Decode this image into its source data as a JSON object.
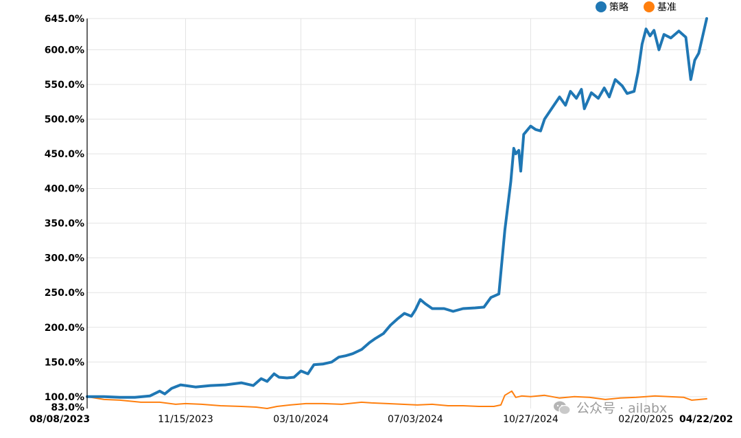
{
  "chart_data": {
    "type": "line",
    "legend_position": "top-right",
    "grid": true,
    "ylim": [
      83.0,
      645.0
    ],
    "y_ticks": [
      "83.0%",
      "100.0%",
      "150.0%",
      "200.0%",
      "250.0%",
      "300.0%",
      "350.0%",
      "400.0%",
      "450.0%",
      "500.0%",
      "550.0%",
      "600.0%",
      "645.0%"
    ],
    "x_ticks": [
      "08/08/2023",
      "11/15/2023",
      "03/10/2024",
      "07/03/2024",
      "10/27/2024",
      "02/20/2025",
      "04/22/202"
    ],
    "x_range": [
      "2023-08-08",
      "2025-04-22"
    ],
    "series": [
      {
        "name": "策略",
        "color": "#1f77b4",
        "points": [
          [
            "2023-08-08",
            100
          ],
          [
            "2023-08-25",
            100
          ],
          [
            "2023-09-10",
            99
          ],
          [
            "2023-09-25",
            99
          ],
          [
            "2023-10-10",
            101
          ],
          [
            "2023-10-20",
            108
          ],
          [
            "2023-10-25",
            104
          ],
          [
            "2023-11-01",
            112
          ],
          [
            "2023-11-10",
            117
          ],
          [
            "2023-11-15",
            116
          ],
          [
            "2023-11-25",
            114
          ],
          [
            "2023-12-10",
            116
          ],
          [
            "2023-12-25",
            117
          ],
          [
            "2024-01-10",
            120
          ],
          [
            "2024-01-22",
            116
          ],
          [
            "2024-01-30",
            126
          ],
          [
            "2024-02-05",
            122
          ],
          [
            "2024-02-12",
            133
          ],
          [
            "2024-02-17",
            128
          ],
          [
            "2024-02-25",
            127
          ],
          [
            "2024-03-03",
            128
          ],
          [
            "2024-03-10",
            137
          ],
          [
            "2024-03-17",
            133
          ],
          [
            "2024-03-23",
            146
          ],
          [
            "2024-04-01",
            147
          ],
          [
            "2024-04-10",
            150
          ],
          [
            "2024-04-17",
            157
          ],
          [
            "2024-04-24",
            159
          ],
          [
            "2024-05-01",
            162
          ],
          [
            "2024-05-10",
            168
          ],
          [
            "2024-05-18",
            178
          ],
          [
            "2024-05-24",
            184
          ],
          [
            "2024-06-01",
            191
          ],
          [
            "2024-06-08",
            203
          ],
          [
            "2024-06-15",
            212
          ],
          [
            "2024-06-22",
            220
          ],
          [
            "2024-06-29",
            216
          ],
          [
            "2024-07-03",
            225
          ],
          [
            "2024-07-08",
            240
          ],
          [
            "2024-07-13",
            234
          ],
          [
            "2024-07-20",
            227
          ],
          [
            "2024-08-01",
            227
          ],
          [
            "2024-08-10",
            223
          ],
          [
            "2024-08-20",
            227
          ],
          [
            "2024-09-01",
            228
          ],
          [
            "2024-09-10",
            229
          ],
          [
            "2024-09-17",
            243
          ],
          [
            "2024-09-25",
            248
          ],
          [
            "2024-10-01",
            340
          ],
          [
            "2024-10-07",
            410
          ],
          [
            "2024-10-10",
            458
          ],
          [
            "2024-10-12",
            450
          ],
          [
            "2024-10-15",
            455
          ],
          [
            "2024-10-17",
            425
          ],
          [
            "2024-10-20",
            478
          ],
          [
            "2024-10-27",
            490
          ],
          [
            "2024-11-01",
            485
          ],
          [
            "2024-11-06",
            483
          ],
          [
            "2024-11-10",
            500
          ],
          [
            "2024-11-17",
            515
          ],
          [
            "2024-11-25",
            532
          ],
          [
            "2024-12-01",
            520
          ],
          [
            "2024-12-06",
            540
          ],
          [
            "2024-12-12",
            530
          ],
          [
            "2024-12-17",
            543
          ],
          [
            "2024-12-20",
            515
          ],
          [
            "2024-12-27",
            538
          ],
          [
            "2025-01-03",
            530
          ],
          [
            "2025-01-09",
            545
          ],
          [
            "2025-01-14",
            532
          ],
          [
            "2025-01-20",
            557
          ],
          [
            "2025-01-27",
            548
          ],
          [
            "2025-02-01",
            537
          ],
          [
            "2025-02-08",
            540
          ],
          [
            "2025-02-12",
            568
          ],
          [
            "2025-02-16",
            608
          ],
          [
            "2025-02-20",
            630
          ],
          [
            "2025-02-24",
            620
          ],
          [
            "2025-02-28",
            628
          ],
          [
            "2025-03-05",
            600
          ],
          [
            "2025-03-10",
            622
          ],
          [
            "2025-03-17",
            617
          ],
          [
            "2025-03-25",
            627
          ],
          [
            "2025-04-01",
            618
          ],
          [
            "2025-04-06",
            557
          ],
          [
            "2025-04-10",
            585
          ],
          [
            "2025-04-14",
            595
          ],
          [
            "2025-04-18",
            620
          ],
          [
            "2025-04-22",
            645
          ]
        ]
      },
      {
        "name": "基准",
        "color": "#ff7f0e",
        "points": [
          [
            "2023-08-08",
            100
          ],
          [
            "2023-08-25",
            96
          ],
          [
            "2023-09-10",
            95
          ],
          [
            "2023-10-01",
            92
          ],
          [
            "2023-10-20",
            92
          ],
          [
            "2023-11-05",
            89
          ],
          [
            "2023-11-15",
            90
          ],
          [
            "2023-12-01",
            89
          ],
          [
            "2023-12-20",
            87
          ],
          [
            "2024-01-10",
            86
          ],
          [
            "2024-01-25",
            85
          ],
          [
            "2024-02-05",
            83
          ],
          [
            "2024-02-15",
            86
          ],
          [
            "2024-02-28",
            88
          ],
          [
            "2024-03-15",
            90
          ],
          [
            "2024-04-01",
            90
          ],
          [
            "2024-04-20",
            89
          ],
          [
            "2024-05-10",
            92
          ],
          [
            "2024-05-20",
            91
          ],
          [
            "2024-06-05",
            90
          ],
          [
            "2024-06-20",
            89
          ],
          [
            "2024-07-05",
            88
          ],
          [
            "2024-07-20",
            89
          ],
          [
            "2024-08-05",
            87
          ],
          [
            "2024-08-20",
            87
          ],
          [
            "2024-09-05",
            86
          ],
          [
            "2024-09-20",
            86
          ],
          [
            "2024-09-27",
            88
          ],
          [
            "2024-10-01",
            102
          ],
          [
            "2024-10-08",
            108
          ],
          [
            "2024-10-12",
            99
          ],
          [
            "2024-10-18",
            101
          ],
          [
            "2024-10-27",
            100
          ],
          [
            "2024-11-10",
            102
          ],
          [
            "2024-11-25",
            98
          ],
          [
            "2024-12-10",
            100
          ],
          [
            "2024-12-25",
            99
          ],
          [
            "2025-01-10",
            96
          ],
          [
            "2025-01-25",
            98
          ],
          [
            "2025-02-10",
            99
          ],
          [
            "2025-02-20",
            100
          ],
          [
            "2025-03-01",
            101
          ],
          [
            "2025-03-15",
            100
          ],
          [
            "2025-03-30",
            99
          ],
          [
            "2025-04-07",
            95
          ],
          [
            "2025-04-15",
            96
          ],
          [
            "2025-04-22",
            97
          ]
        ]
      }
    ]
  },
  "legend": {
    "items": [
      {
        "label": "策略",
        "color": "#1f77b4"
      },
      {
        "label": "基准",
        "color": "#ff7f0e"
      }
    ]
  },
  "watermark": {
    "text": "公众号 · ailabx",
    "icon": "wechat-icon"
  }
}
